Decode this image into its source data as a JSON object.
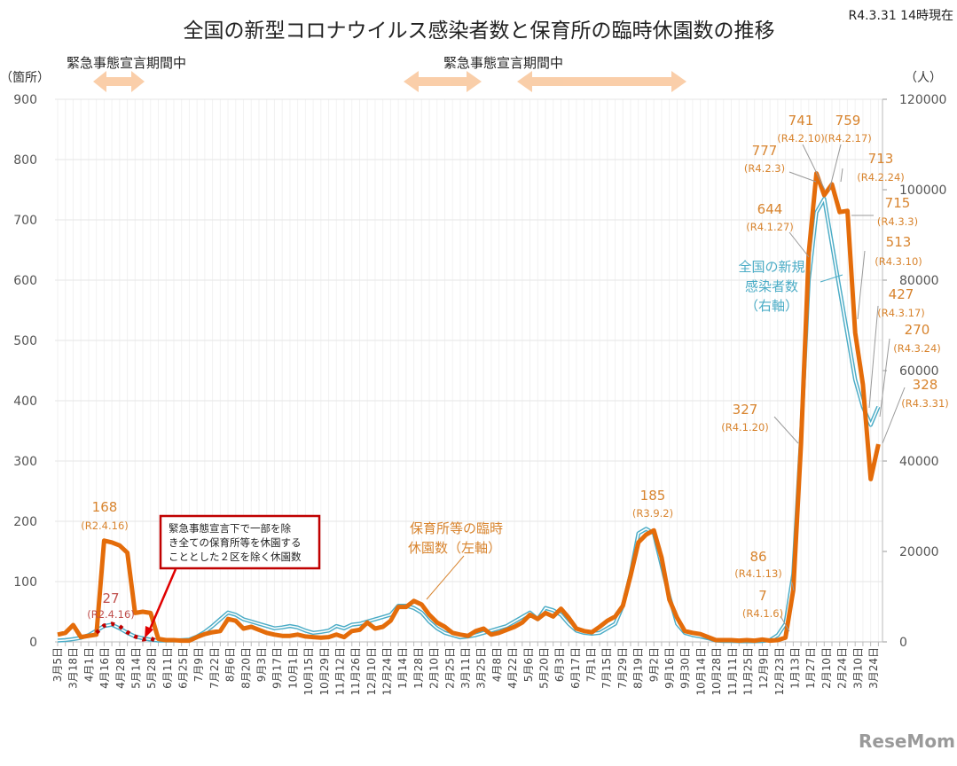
{
  "chart_data": {
    "type": "line",
    "title": "全国の新型コロナウイルス感染者数と保育所の臨時休園数の推移",
    "as_of": "R4.3.31 14時現在",
    "left_axis": {
      "unit_label": "（箇所）",
      "ylim": [
        0,
        900
      ],
      "ticks": [
        "0",
        "100",
        "200",
        "300",
        "400",
        "500",
        "600",
        "700",
        "800",
        "900"
      ]
    },
    "right_axis": {
      "unit_label": "（人）",
      "ylim": [
        0,
        120000
      ],
      "ticks": [
        "0",
        "20000",
        "40000",
        "60000",
        "80000",
        "100000",
        "120000"
      ]
    },
    "grid": true,
    "x_labels": [
      "3月5日",
      "3月18日",
      "4月1日",
      "4月16日",
      "4月28日",
      "5月14日",
      "5月28日",
      "6月11日",
      "6月25日",
      "7月9日",
      "7月22日",
      "8月6日",
      "8月20日",
      "9月3日",
      "9月17日",
      "10月1日",
      "10月15日",
      "10月29日",
      "11月12日",
      "11月26日",
      "12月10日",
      "12月24日",
      "1月14日",
      "1月28日",
      "2月10日",
      "2月25日",
      "3月11日",
      "3月25日",
      "4月8日",
      "4月22日",
      "5月6日",
      "5月20日",
      "6月3日",
      "6月17日",
      "7月1日",
      "7月15日",
      "7月29日",
      "8月19日",
      "9月2日",
      "9月16日",
      "9月30日",
      "10月14日",
      "10月28日",
      "11月11日",
      "11月25日",
      "12月9日",
      "12月23日",
      "1月13日",
      "1月27日",
      "2月10日",
      "2月24日",
      "3月10日",
      "3月24日"
    ],
    "emergency_periods": [
      {
        "label": "緊急事態宣言期間中"
      },
      {
        "label": "緊急事態宣言期間中"
      }
    ],
    "series": [
      {
        "name": "保育所等の臨時休園数（左軸）",
        "axis": "left",
        "color": "#E46C0A",
        "values": [
          12,
          15,
          28,
          8,
          10,
          12,
          168,
          165,
          160,
          148,
          48,
          50,
          48,
          5,
          3,
          3,
          2,
          2,
          8,
          13,
          16,
          18,
          38,
          35,
          22,
          25,
          20,
          15,
          12,
          10,
          10,
          12,
          9,
          8,
          7,
          8,
          12,
          8,
          18,
          20,
          32,
          22,
          25,
          35,
          58,
          58,
          68,
          62,
          45,
          32,
          25,
          15,
          12,
          10,
          18,
          22,
          12,
          15,
          20,
          25,
          32,
          45,
          38,
          48,
          42,
          55,
          40,
          22,
          18,
          16,
          25,
          35,
          42,
          60,
          110,
          165,
          178,
          185,
          140,
          70,
          40,
          18,
          15,
          13,
          8,
          3,
          3,
          3,
          2,
          3,
          2,
          4,
          2,
          3,
          7,
          86,
          327,
          644,
          777,
          741,
          759,
          713,
          715,
          513,
          427,
          270,
          328
        ]
      },
      {
        "name": "全国の新規感染者数（右軸）",
        "axis": "right",
        "color": "#4BACC6",
        "values": [
          300,
          400,
          600,
          900,
          1500,
          2500,
          3500,
          3800,
          3000,
          2000,
          1200,
          800,
          500,
          300,
          300,
          300,
          400,
          500,
          1200,
          2200,
          3500,
          5000,
          6500,
          6000,
          5000,
          4500,
          4000,
          3500,
          3000,
          3200,
          3500,
          3200,
          2500,
          2000,
          2200,
          2500,
          3500,
          3000,
          3800,
          4000,
          4500,
          5000,
          5500,
          6000,
          8000,
          8000,
          7500,
          6500,
          4500,
          3000,
          2000,
          1500,
          1000,
          1200,
          1500,
          2000,
          2500,
          3000,
          3500,
          4500,
          5500,
          6500,
          5000,
          7500,
          7000,
          6000,
          4000,
          2500,
          2000,
          1800,
          2000,
          3000,
          4000,
          8000,
          15000,
          24000,
          25000,
          24000,
          17000,
          10000,
          4000,
          2000,
          1500,
          1200,
          800,
          300,
          200,
          200,
          150,
          150,
          150,
          200,
          400,
          1500,
          4000,
          15000,
          45000,
          80000,
          95000,
          98000,
          88000,
          78000,
          68000,
          58000,
          52000,
          48000,
          52000
        ]
      },
      {
        "name": "緊急事態宣言下で一部を除き全ての保育所等を休園することとした２区を除く休園数",
        "axis": "left",
        "color": "#C00000",
        "style": "dotted",
        "start_index": 5,
        "values": [
          15,
          27,
          30,
          26,
          16,
          9,
          4,
          6,
          0
        ]
      }
    ],
    "data_labels": [
      {
        "value": "168",
        "date": "(R2.4.16)"
      },
      {
        "value": "27",
        "date": "(R2.4.16)"
      },
      {
        "value": "185",
        "date": "(R3.9.2)"
      },
      {
        "value": "86",
        "date": "(R4.1.13)"
      },
      {
        "value": "7",
        "date": "(R4.1.6)"
      },
      {
        "value": "327",
        "date": "(R4.1.20)"
      },
      {
        "value": "644",
        "date": "(R4.1.27)"
      },
      {
        "value": "777",
        "date": "(R4.2.3)"
      },
      {
        "value": "741",
        "date": "(R4.2.10)"
      },
      {
        "value": "759",
        "date": "(R4.2.17)"
      },
      {
        "value": "713",
        "date": "(R4.2.24)"
      },
      {
        "value": "715",
        "date": "(R4.3.3)"
      },
      {
        "value": "513",
        "date": "(R4.3.10)"
      },
      {
        "value": "427",
        "date": "(R4.3.17)"
      },
      {
        "value": "270",
        "date": "(R4.3.24)"
      },
      {
        "value": "328",
        "date": "(R4.3.31)"
      }
    ],
    "series_labels": {
      "nursery": [
        "保育所等の臨時",
        "休園数（左軸）"
      ],
      "cases": [
        "全国の新規",
        "感染者数",
        "（右軸）"
      ]
    },
    "callout": [
      "緊急事態宣言下で一部を除",
      "き全ての保育所等を休園する",
      "こととした２区を除く休園数"
    ]
  },
  "logo": "ReseMom"
}
